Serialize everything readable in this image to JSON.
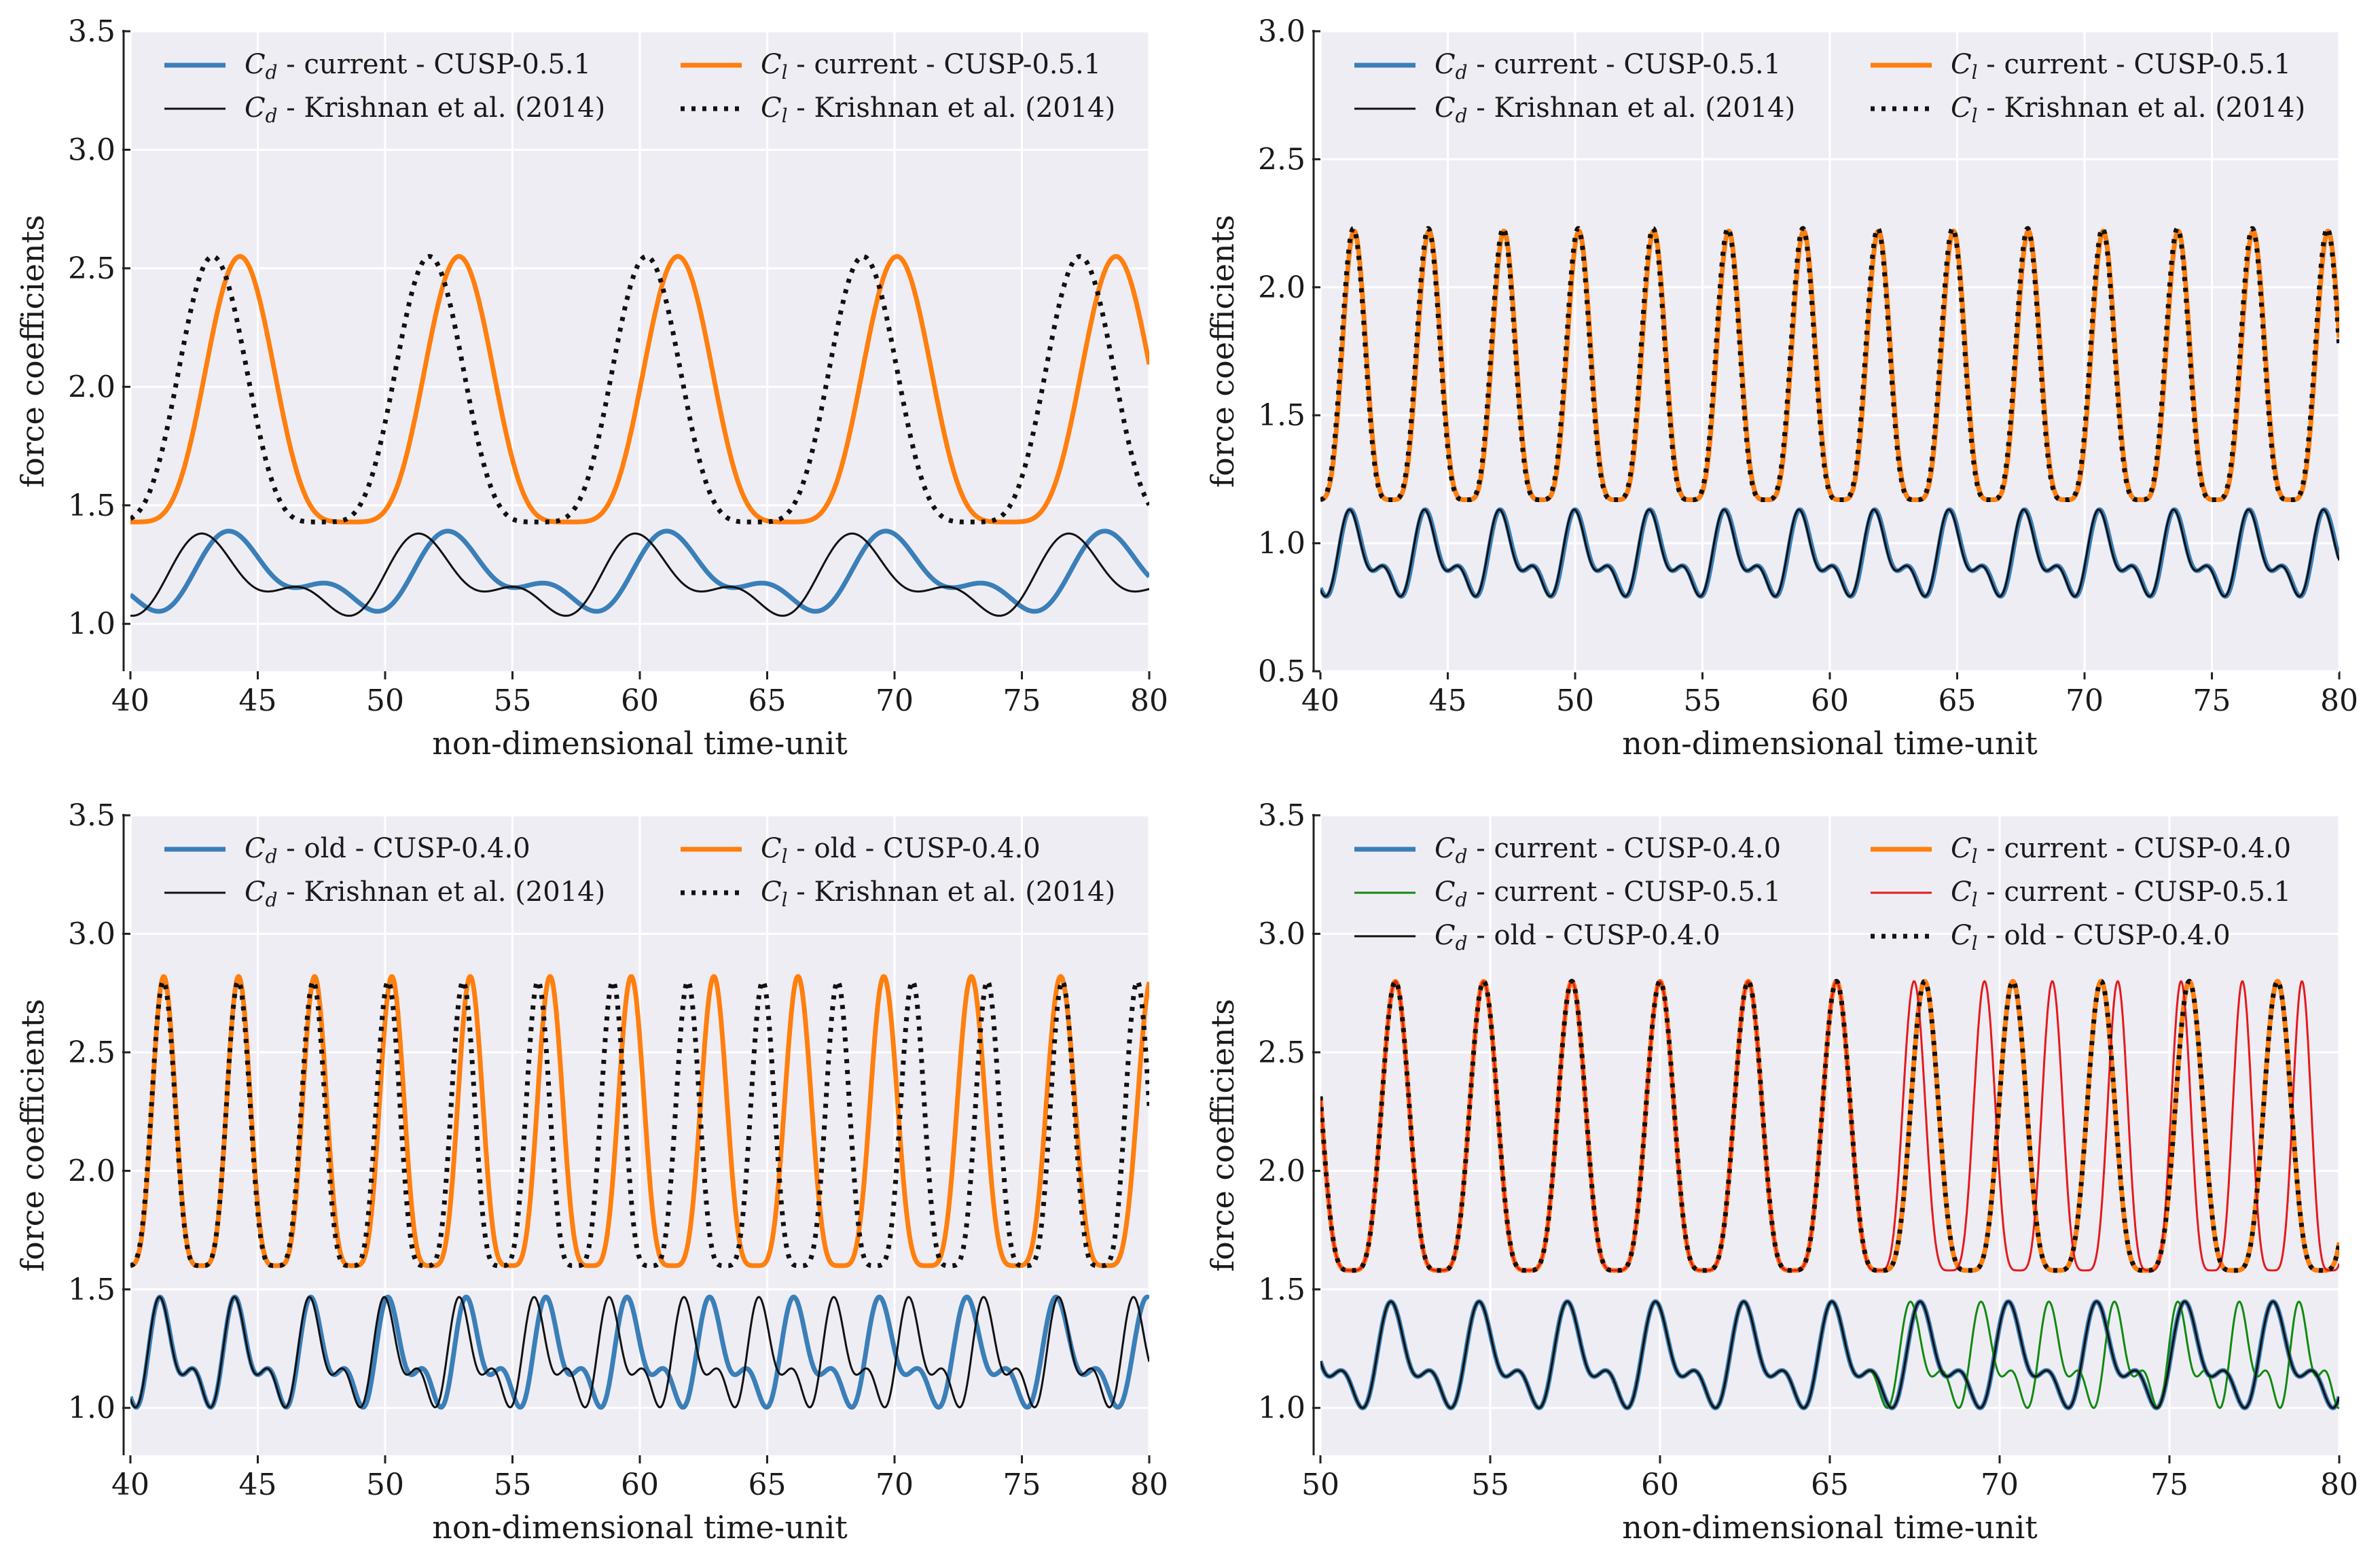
{
  "colors": {
    "cd": "#3a7fb8",
    "cl": "#ff7f0e",
    "ref": "#111111",
    "green": "#108a10",
    "red": "#e41a1c",
    "plot_bg": "#efedf4",
    "grid": "#ffffff"
  },
  "chart_data": [
    {
      "type": "line",
      "xlabel": "non-dimensional time-unit",
      "ylabel": "force coefficients",
      "xlim": [
        40,
        80
      ],
      "ylim": [
        0.8,
        3.5
      ],
      "xticks": [
        "40",
        "45",
        "50",
        "55",
        "60",
        "65",
        "70",
        "75",
        "80"
      ],
      "yticks": [
        "1.0",
        "1.5",
        "2.0",
        "2.5",
        "3.0",
        "3.5"
      ],
      "ytick_values": [
        1.0,
        1.5,
        2.0,
        2.5,
        3.0,
        3.5
      ],
      "legend_ncol": 2,
      "legend_loc": "upper left",
      "series": [
        {
          "name": "C_d - current - CUSP-0.5.1",
          "kind": "cd",
          "color": "cd",
          "width": 7,
          "dash": "",
          "freq": 0.1163,
          "phase": 0.5,
          "base": 1.0,
          "amp": 0.4,
          "drift": 0
        },
        {
          "name": "C_d - Krishnan et al. (2014)",
          "kind": "cd",
          "color": "ref",
          "width": 3,
          "dash": "",
          "freq": 0.1175,
          "phase": 0.62,
          "base": 0.98,
          "amp": 0.41,
          "drift": 0
        },
        {
          "name": "C_l - current - CUSP-0.5.1",
          "kind": "cl",
          "color": "cl",
          "width": 7,
          "dash": "",
          "freq": 0.1163,
          "phase": 0.5,
          "base": 1.43,
          "amp": 1.12,
          "drift": 0
        },
        {
          "name": "C_l - Krishnan et al. (2014)",
          "kind": "cl",
          "color": "ref",
          "width": 7,
          "dash": "6,10",
          "freq": 0.1175,
          "phase": 0.62,
          "base": 1.43,
          "amp": 1.12,
          "drift": 0
        }
      ],
      "legend": [
        {
          "sym": "C",
          "sub": "d",
          "text": " - current - CUSP-0.5.1",
          "series": 0
        },
        {
          "sym": "C",
          "sub": "l",
          "text": " - current - CUSP-0.5.1",
          "series": 2
        },
        {
          "sym": "C",
          "sub": "d",
          "text": " - Krishnan et al. (2014)",
          "series": 1
        },
        {
          "sym": "C",
          "sub": "l",
          "text": " - Krishnan et al. (2014)",
          "series": 3
        }
      ]
    },
    {
      "type": "line",
      "xlabel": "non-dimensional time-unit",
      "ylabel": "force coefficients",
      "xlim": [
        40,
        80
      ],
      "ylim": [
        0.5,
        3.0
      ],
      "xticks": [
        "40",
        "45",
        "50",
        "55",
        "60",
        "65",
        "70",
        "75",
        "80"
      ],
      "yticks": [
        "0.5",
        "1.0",
        "1.5",
        "2.0",
        "2.5",
        "3.0"
      ],
      "ytick_values": [
        0.5,
        1.0,
        1.5,
        2.0,
        2.5,
        3.0
      ],
      "legend_ncol": 2,
      "legend_loc": "upper left",
      "series": [
        {
          "name": "C_d - current - CUSP-0.5.1",
          "kind": "cd",
          "color": "cd",
          "width": 7,
          "dash": "",
          "freq": 0.34,
          "phase": 0.55,
          "base": 0.74,
          "amp": 0.4,
          "drift": 0
        },
        {
          "name": "C_d - Krishnan et al. (2014)",
          "kind": "cd",
          "color": "ref",
          "width": 3,
          "dash": "",
          "freq": 0.34,
          "phase": 0.56,
          "base": 0.74,
          "amp": 0.4,
          "drift": 0
        },
        {
          "name": "C_l - current - CUSP-0.5.1",
          "kind": "cl",
          "color": "cl",
          "width": 7,
          "dash": "",
          "freq": 0.34,
          "phase": 0.55,
          "base": 1.17,
          "amp": 1.05,
          "drift": 0
        },
        {
          "name": "C_l - Krishnan et al. (2014)",
          "kind": "cl",
          "color": "ref",
          "width": 7,
          "dash": "6,10",
          "freq": 0.34,
          "phase": 0.56,
          "base": 1.17,
          "amp": 1.06,
          "drift": 0
        }
      ],
      "legend": [
        {
          "sym": "C",
          "sub": "d",
          "text": " - current - CUSP-0.5.1",
          "series": 0
        },
        {
          "sym": "C",
          "sub": "l",
          "text": " - current - CUSP-0.5.1",
          "series": 2
        },
        {
          "sym": "C",
          "sub": "d",
          "text": " - Krishnan et al. (2014)",
          "series": 1
        },
        {
          "sym": "C",
          "sub": "l",
          "text": " - Krishnan et al. (2014)",
          "series": 3
        }
      ]
    },
    {
      "type": "line",
      "xlabel": "non-dimensional time-unit",
      "ylabel": "force coefficients",
      "xlim": [
        40,
        80
      ],
      "ylim": [
        0.8,
        3.5
      ],
      "xticks": [
        "40",
        "45",
        "50",
        "55",
        "60",
        "65",
        "70",
        "75",
        "80"
      ],
      "yticks": [
        "1.0",
        "1.5",
        "2.0",
        "2.5",
        "3.0",
        "3.5"
      ],
      "ytick_values": [
        1.0,
        1.5,
        2.0,
        2.5,
        3.0,
        3.5
      ],
      "legend_ncol": 2,
      "legend_loc": "upper left",
      "series": [
        {
          "name": "C_d - old - CUSP-0.4.0",
          "kind": "cd",
          "color": "cd",
          "width": 7,
          "dash": "",
          "freq": 0.345,
          "phase": 0.55,
          "base": 0.93,
          "amp": 0.55,
          "drift": 1
        },
        {
          "name": "C_d - Krishnan et al. (2014)",
          "kind": "cd",
          "color": "ref",
          "width": 3,
          "dash": "",
          "freq": 0.34,
          "phase": 0.56,
          "base": 0.93,
          "amp": 0.55,
          "drift": 0
        },
        {
          "name": "C_l - old - CUSP-0.4.0",
          "kind": "cl",
          "color": "cl",
          "width": 7,
          "dash": "",
          "freq": 0.345,
          "phase": 0.55,
          "base": 1.6,
          "amp": 1.22,
          "drift": 1
        },
        {
          "name": "C_l - Krishnan et al. (2014)",
          "kind": "cl",
          "color": "ref",
          "width": 7,
          "dash": "6,10",
          "freq": 0.34,
          "phase": 0.56,
          "base": 1.6,
          "amp": 1.2,
          "drift": 0
        }
      ],
      "legend": [
        {
          "sym": "C",
          "sub": "d",
          "text": " - old - CUSP-0.4.0",
          "series": 0
        },
        {
          "sym": "C",
          "sub": "l",
          "text": " - old - CUSP-0.4.0",
          "series": 2
        },
        {
          "sym": "C",
          "sub": "d",
          "text": " - Krishnan et al. (2014)",
          "series": 1
        },
        {
          "sym": "C",
          "sub": "l",
          "text": " - Krishnan et al. (2014)",
          "series": 3
        }
      ]
    },
    {
      "type": "line",
      "xlabel": "non-dimensional time-unit",
      "ylabel": "force coefficients",
      "xlim": [
        50,
        80
      ],
      "ylim": [
        0.8,
        3.5
      ],
      "xticks": [
        "50",
        "55",
        "60",
        "65",
        "70",
        "75",
        "80"
      ],
      "yticks": [
        "1.0",
        "1.5",
        "2.0",
        "2.5",
        "3.0",
        "3.5"
      ],
      "ytick_values": [
        1.0,
        1.5,
        2.0,
        2.5,
        3.0,
        3.5
      ],
      "legend_ncol": 2,
      "legend_loc": "upper left",
      "series": [
        {
          "name": "C_d - current - CUSP-0.4.0",
          "kind": "cd",
          "color": "cd",
          "width": 7,
          "dash": "",
          "freq": 0.385,
          "phase": 0.15,
          "base": 0.93,
          "amp": 0.53,
          "drift": 2
        },
        {
          "name": "C_d - current - CUSP-0.5.1",
          "kind": "cd",
          "color": "green",
          "width": 3,
          "dash": "",
          "freq": 0.385,
          "phase": 0.15,
          "base": 0.93,
          "amp": 0.53,
          "drift": 3
        },
        {
          "name": "C_d - old - CUSP-0.4.0",
          "kind": "cd",
          "color": "ref",
          "width": 3,
          "dash": "",
          "freq": 0.385,
          "phase": 0.15,
          "base": 0.93,
          "amp": 0.53,
          "drift": 2
        },
        {
          "name": "C_l - current - CUSP-0.4.0",
          "kind": "cl",
          "color": "cl",
          "width": 7,
          "dash": "",
          "freq": 0.385,
          "phase": 0.15,
          "base": 1.58,
          "amp": 1.22,
          "drift": 2
        },
        {
          "name": "C_l - current - CUSP-0.5.1",
          "kind": "cl",
          "color": "red",
          "width": 3,
          "dash": "",
          "freq": 0.385,
          "phase": 0.15,
          "base": 1.58,
          "amp": 1.22,
          "drift": 3
        },
        {
          "name": "C_l - old - CUSP-0.4.0",
          "kind": "cl",
          "color": "ref",
          "width": 7,
          "dash": "6,10",
          "freq": 0.385,
          "phase": 0.15,
          "base": 1.58,
          "amp": 1.22,
          "drift": 2
        }
      ],
      "legend": [
        {
          "sym": "C",
          "sub": "d",
          "text": " - current - CUSP-0.4.0",
          "series": 0
        },
        {
          "sym": "C",
          "sub": "l",
          "text": " - current - CUSP-0.4.0",
          "series": 3
        },
        {
          "sym": "C",
          "sub": "d",
          "text": " - current - CUSP-0.5.1",
          "series": 1
        },
        {
          "sym": "C",
          "sub": "l",
          "text": " - current - CUSP-0.5.1",
          "series": 4
        },
        {
          "sym": "C",
          "sub": "d",
          "text": " - old - CUSP-0.4.0",
          "series": 2
        },
        {
          "sym": "C",
          "sub": "l",
          "text": " - old - CUSP-0.4.0",
          "series": 5
        }
      ]
    }
  ]
}
